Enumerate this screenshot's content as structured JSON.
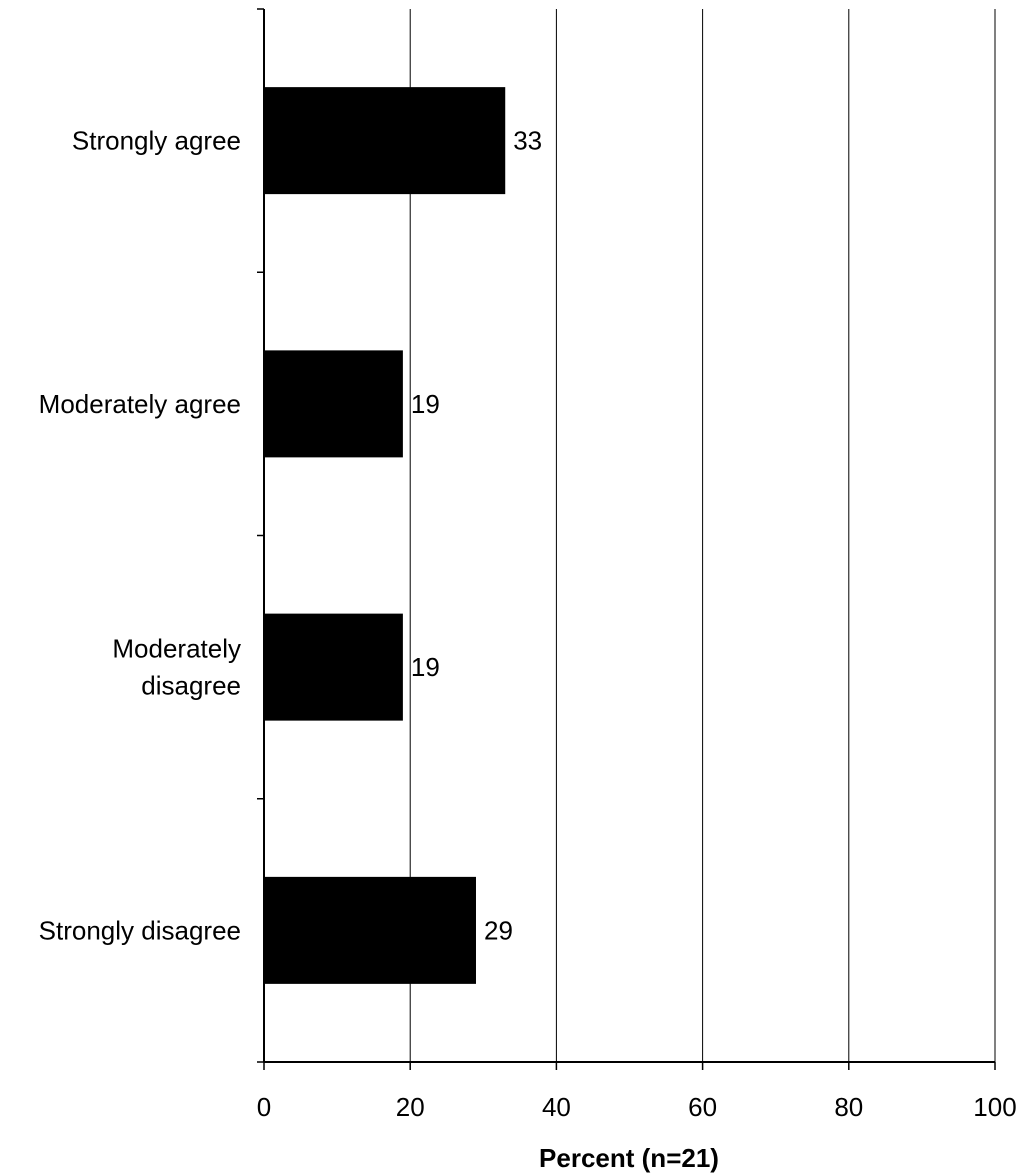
{
  "chart_data": {
    "type": "bar",
    "orientation": "horizontal",
    "categories": [
      [
        "Strongly agree"
      ],
      [
        "Moderately agree"
      ],
      [
        "Moderately",
        "disagree"
      ],
      [
        "Strongly disagree"
      ]
    ],
    "values": [
      33,
      19,
      19,
      29
    ],
    "value_labels": [
      "33",
      "19",
      "19",
      "29"
    ],
    "xlabel": "Percent (n=21)",
    "ylabel": "",
    "xlim": [
      0,
      100
    ],
    "xticks": [
      0,
      20,
      40,
      60,
      80,
      100
    ],
    "xtick_labels": [
      "0",
      "20",
      "40",
      "60",
      "80",
      "100"
    ],
    "grid": "vertical",
    "bar_color": "#000000",
    "legend": "none"
  }
}
